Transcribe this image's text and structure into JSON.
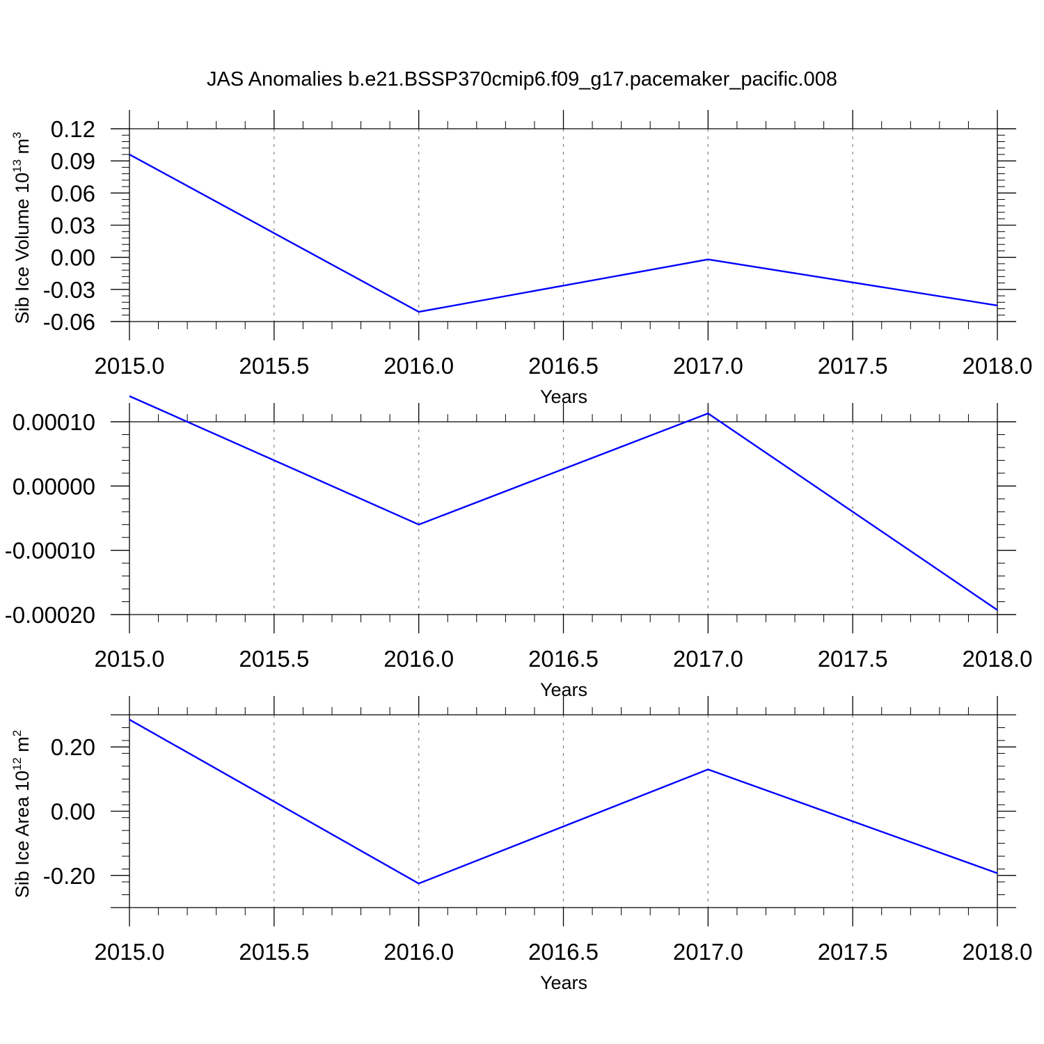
{
  "title": "JAS Anomalies b.e21.BSSP370cmip6.f09_g17.pacemaker_pacific.008",
  "colors": {
    "line": "#0000ff",
    "axis": "#000000",
    "grid": "#808080"
  },
  "chart_data": [
    {
      "type": "line",
      "x": [
        2015.0,
        2016.0,
        2017.0,
        2018.0
      ],
      "values": [
        0.096,
        -0.051,
        -0.002,
        -0.045
      ],
      "xlim": [
        2015.0,
        2018.0
      ],
      "ylim": [
        -0.06,
        0.12
      ],
      "xticks": [
        2015.0,
        2015.5,
        2016.0,
        2016.5,
        2017.0,
        2017.5,
        2018.0
      ],
      "xtick_labels": [
        "2015.0",
        "2015.5",
        "2016.0",
        "2016.5",
        "2017.0",
        "2017.5",
        "2018.0"
      ],
      "yticks": [
        0.12,
        0.09,
        0.06,
        0.03,
        0.0,
        -0.03,
        -0.06
      ],
      "ytick_labels": [
        "0.12",
        "0.09",
        "0.06",
        "0.03",
        "0.00",
        "-0.03",
        "-0.06"
      ],
      "xlabel": "Years",
      "ylabel": {
        "text": "Sib Ice Volume 10",
        "sup": "13",
        "unit": " m",
        "unit_sup": "3"
      },
      "grid": "vertical dashed at x ticks"
    },
    {
      "type": "line",
      "x": [
        2015.0,
        2016.0,
        2017.0,
        2018.0
      ],
      "values": [
        0.00014,
        -6e-05,
        0.000113,
        -0.000193
      ],
      "xlim": [
        2015.0,
        2018.0
      ],
      "ylim": [
        -0.0002,
        0.0001
      ],
      "xticks": [
        2015.0,
        2015.5,
        2016.0,
        2016.5,
        2017.0,
        2017.5,
        2018.0
      ],
      "xtick_labels": [
        "2015.0",
        "2015.5",
        "2016.0",
        "2016.5",
        "2017.0",
        "2017.5",
        "2018.0"
      ],
      "yticks": [
        0.0001,
        0.0,
        -0.0001,
        -0.0002
      ],
      "ytick_labels": [
        "0.00010",
        "0.00000",
        "-0.00010",
        "-0.00020"
      ],
      "xlabel": "Years",
      "ylabel": null,
      "grid": "vertical dashed at x ticks"
    },
    {
      "type": "line",
      "x": [
        2015.0,
        2016.0,
        2017.0,
        2018.0
      ],
      "values": [
        0.285,
        -0.225,
        0.13,
        -0.193
      ],
      "xlim": [
        2015.0,
        2018.0
      ],
      "ylim": [
        -0.3,
        0.3
      ],
      "xticks": [
        2015.0,
        2015.5,
        2016.0,
        2016.5,
        2017.0,
        2017.5,
        2018.0
      ],
      "xtick_labels": [
        "2015.0",
        "2015.5",
        "2016.0",
        "2016.5",
        "2017.0",
        "2017.5",
        "2018.0"
      ],
      "yticks": [
        0.2,
        0.0,
        -0.2
      ],
      "ytick_labels": [
        "0.20",
        "0.00",
        "-0.20"
      ],
      "xlabel": "Years",
      "ylabel": {
        "text": "Sib Ice Area 10",
        "sup": "12",
        "unit": " m",
        "unit_sup": "2"
      },
      "grid": "vertical dashed at x ticks"
    }
  ]
}
